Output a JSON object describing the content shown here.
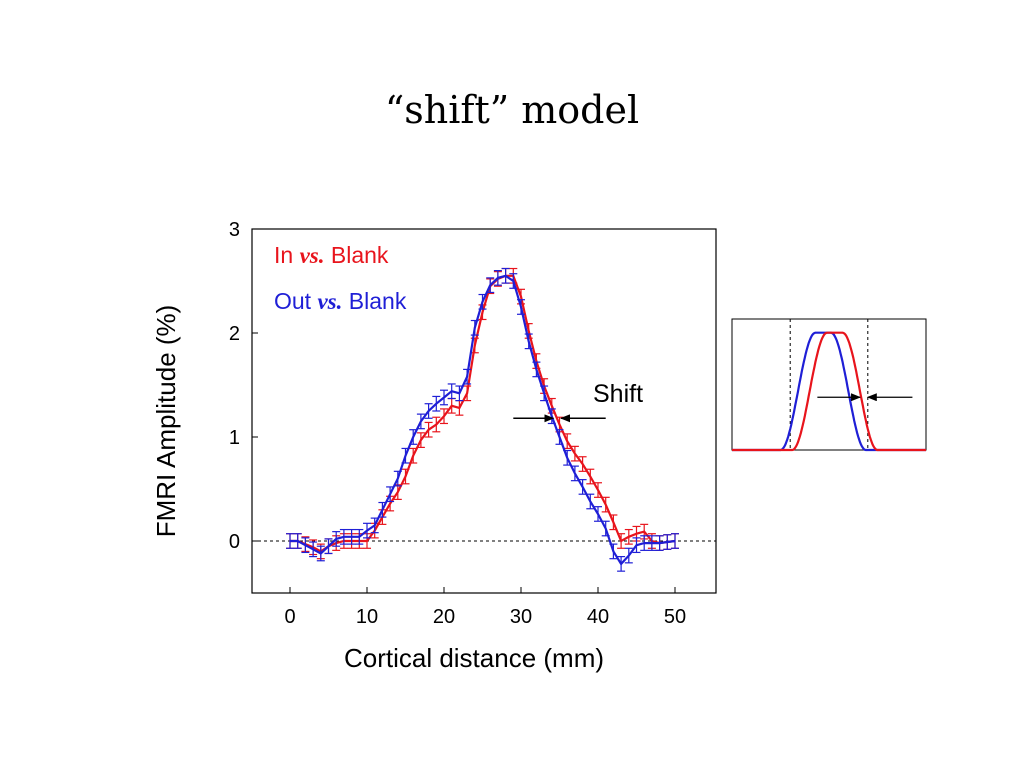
{
  "slide": {
    "title": "“shift” model"
  },
  "chart_data": [
    {
      "type": "line",
      "xlabel": "Cortical distance (mm)",
      "ylabel": "FMRI Amplitude (%)",
      "xlim": [
        -5,
        53
      ],
      "ylim": [
        -0.5,
        3
      ],
      "xticks": [
        0,
        10,
        20,
        30,
        40,
        50
      ],
      "yticks": [
        0,
        1,
        2,
        3
      ],
      "zero_line": {
        "y": 0,
        "style": "dotted"
      },
      "legend": {
        "placement": "top-left"
      },
      "series": [
        {
          "name_parts": [
            "In ",
            "vs.",
            " Blank"
          ],
          "color": "#e8141c",
          "x": [
            0,
            1,
            2,
            3,
            4,
            5,
            6,
            7,
            8,
            9,
            10,
            11,
            12,
            13,
            14,
            15,
            16,
            17,
            18,
            19,
            20,
            21,
            22,
            23,
            24,
            25,
            26,
            27,
            28,
            29,
            30,
            31,
            32,
            33,
            34,
            35,
            36,
            37,
            38,
            39,
            40,
            41,
            42,
            43,
            44,
            45,
            46,
            47,
            48,
            49,
            50
          ],
          "y": [
            0.0,
            0.0,
            -0.03,
            -0.06,
            -0.1,
            -0.05,
            -0.02,
            0.0,
            0.0,
            0.0,
            0.0,
            0.1,
            0.23,
            0.36,
            0.47,
            0.62,
            0.82,
            0.97,
            1.07,
            1.12,
            1.2,
            1.3,
            1.28,
            1.42,
            1.88,
            2.2,
            2.45,
            2.52,
            2.55,
            2.55,
            2.35,
            2.02,
            1.73,
            1.49,
            1.3,
            1.12,
            0.96,
            0.84,
            0.74,
            0.62,
            0.49,
            0.35,
            0.18,
            0.0,
            0.04,
            0.07,
            0.09,
            0.0,
            -0.02,
            -0.01,
            0.0
          ],
          "error": 0.07
        },
        {
          "name_parts": [
            "Out ",
            "vs.",
            " Blank"
          ],
          "color": "#1f1fd6",
          "x": [
            0,
            1,
            2,
            3,
            4,
            5,
            6,
            7,
            8,
            9,
            10,
            11,
            12,
            13,
            14,
            15,
            16,
            17,
            18,
            19,
            20,
            21,
            22,
            23,
            24,
            25,
            26,
            27,
            28,
            29,
            30,
            31,
            32,
            33,
            34,
            35,
            36,
            37,
            38,
            39,
            40,
            41,
            42,
            43,
            44,
            45,
            46,
            47,
            48,
            49,
            50
          ],
          "y": [
            0.0,
            0.0,
            -0.04,
            -0.08,
            -0.12,
            -0.05,
            0.02,
            0.04,
            0.04,
            0.04,
            0.1,
            0.15,
            0.3,
            0.45,
            0.6,
            0.82,
            1.0,
            1.15,
            1.25,
            1.32,
            1.38,
            1.44,
            1.42,
            1.58,
            2.05,
            2.3,
            2.46,
            2.53,
            2.55,
            2.5,
            2.25,
            1.92,
            1.65,
            1.42,
            1.2,
            1.0,
            0.8,
            0.65,
            0.52,
            0.38,
            0.26,
            0.12,
            -0.1,
            -0.22,
            -0.14,
            -0.04,
            -0.02,
            -0.02,
            -0.02,
            -0.01,
            0.0
          ],
          "error": 0.07
        }
      ],
      "annotation": {
        "text": "Shift",
        "y": 1.18,
        "arrow_left_from_x": 29,
        "arrow_left_to_x": 34.2,
        "arrow_right_from_x": 41,
        "arrow_right_to_x": 35.2
      }
    },
    {
      "type": "line",
      "xlim": [
        0,
        100
      ],
      "ylim": [
        0,
        1.1
      ],
      "vertical_guides_x": [
        30,
        70
      ],
      "series": [
        {
          "color": "#1f1fd6",
          "center": 47,
          "halfwidth": 18,
          "flat": 4
        },
        {
          "color": "#e8141c",
          "center": 53,
          "halfwidth": 18,
          "flat": 4
        }
      ],
      "annotation": {
        "y": 0.45,
        "arrow_left_from_x": 44,
        "arrow_left_to_x": 66,
        "arrow_right_from_x": 93,
        "arrow_right_to_x": 70
      }
    }
  ]
}
